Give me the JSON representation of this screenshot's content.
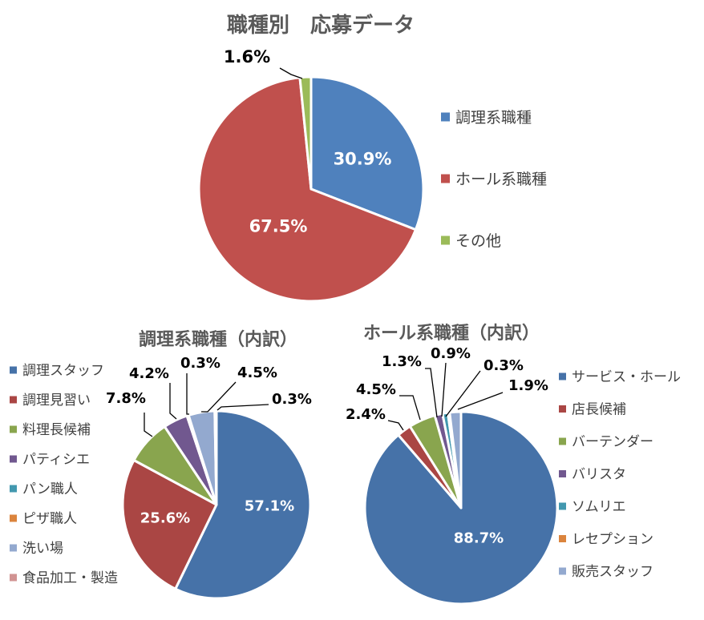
{
  "chart_data": [
    {
      "type": "pie",
      "title": "職種別　応募データ",
      "categories": [
        "調理系職種",
        "ホール系職種",
        "その他"
      ],
      "values": [
        30.9,
        67.5,
        1.6
      ],
      "labels": [
        "30.9%",
        "67.5%",
        "1.6%"
      ],
      "colors": [
        "#4f81bd",
        "#c0504d",
        "#9bbb59"
      ],
      "legend": "right"
    },
    {
      "type": "pie",
      "title": "調理系職種（内訳）",
      "categories": [
        "調理スタッフ",
        "調理見習い",
        "料理長候補",
        "パティシエ",
        "パン職人",
        "ピザ職人",
        "洗い場",
        "食品加工・製造"
      ],
      "values": [
        57.1,
        25.6,
        7.8,
        4.2,
        0.3,
        0.0,
        4.5,
        0.3
      ],
      "labels": [
        "57.1%",
        "25.6%",
        "7.8%",
        "4.2%",
        "0.3%",
        "",
        "4.5%",
        "0.3%"
      ],
      "colors": [
        "#4672a8",
        "#aa4644",
        "#89a54e",
        "#71588f",
        "#4298af",
        "#db843d",
        "#93a9cf",
        "#d19392"
      ],
      "legend": "left"
    },
    {
      "type": "pie",
      "title": "ホール系職種（内訳）",
      "categories": [
        "サービス・ホール",
        "店長候補",
        "バーテンダー",
        "バリスタ",
        "ソムリエ",
        "レセプション",
        "販売スタッフ"
      ],
      "values": [
        88.7,
        2.4,
        4.5,
        1.3,
        0.9,
        0.3,
        1.9
      ],
      "labels": [
        "88.7%",
        "2.4%",
        "4.5%",
        "1.3%",
        "0.9%",
        "0.3%",
        "1.9%"
      ],
      "colors": [
        "#4672a8",
        "#aa4644",
        "#89a54e",
        "#71588f",
        "#4298af",
        "#db843d",
        "#93a9cf"
      ],
      "legend": "right"
    }
  ]
}
